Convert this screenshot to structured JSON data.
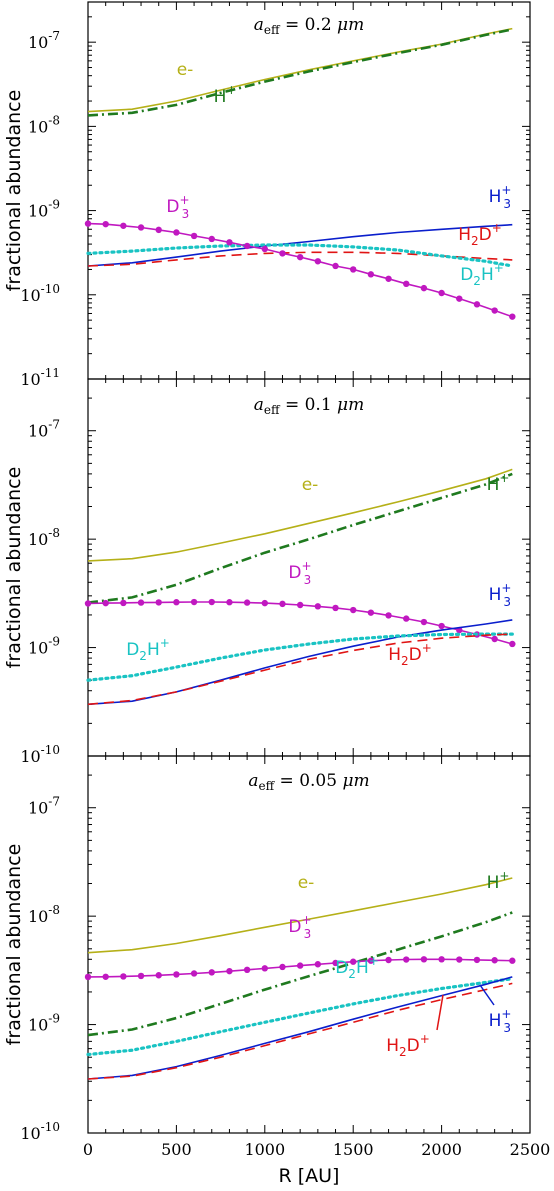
{
  "chart_data": [
    {
      "type": "line",
      "title_parts": {
        "var": "a",
        "sub": "eff",
        "eq": "= 0.2",
        "unit": "μm"
      },
      "ylabel": "fractional abundance",
      "xlabel": "",
      "xlim": [
        0,
        2500
      ],
      "ylim": [
        1e-11,
        3e-07
      ],
      "yscale": "log",
      "yticks": [
        {
          "exp": "-7"
        },
        {
          "exp": "-8"
        },
        {
          "exp": "-9"
        },
        {
          "exp": "-10"
        },
        {
          "exp": "-11"
        }
      ],
      "series": [
        {
          "name": "e-",
          "label": {
            "main": "e-"
          },
          "color": "#b5b018",
          "style": "solid",
          "x": [
            0,
            250,
            500,
            750,
            1000,
            1250,
            1500,
            1750,
            2000,
            2250,
            2400
          ],
          "y": [
            1.5e-08,
            1.6e-08,
            2e-08,
            2.7e-08,
            3.6e-08,
            4.7e-08,
            6e-08,
            7.6e-08,
            9.5e-08,
            1.25e-07,
            1.45e-07
          ]
        },
        {
          "name": "H+",
          "label": {
            "main": "H",
            "sup": "+"
          },
          "color": "#1f7a1f",
          "style": "dashdot",
          "x": [
            0,
            250,
            500,
            750,
            1000,
            1250,
            1500,
            1750,
            2000,
            2250,
            2400
          ],
          "y": [
            1.35e-08,
            1.45e-08,
            1.8e-08,
            2.5e-08,
            3.4e-08,
            4.5e-08,
            5.8e-08,
            7.4e-08,
            9.3e-08,
            1.22e-07,
            1.42e-07
          ]
        },
        {
          "name": "H3+",
          "label": {
            "main": "H",
            "sub": "3",
            "sup": "+"
          },
          "color": "#0a1ecc",
          "style": "solid",
          "x": [
            0,
            250,
            500,
            750,
            1000,
            1250,
            1500,
            1750,
            2000,
            2250,
            2400
          ],
          "y": [
            2.2e-10,
            2.4e-10,
            2.8e-10,
            3.3e-10,
            3.8e-10,
            4.3e-10,
            4.9e-10,
            5.5e-10,
            6e-10,
            6.5e-10,
            6.8e-10
          ]
        },
        {
          "name": "H2D+",
          "label": {
            "main": "H",
            "sub": "2",
            "main2": "D",
            "sup": "+"
          },
          "color": "#e01414",
          "style": "dashed",
          "x": [
            0,
            250,
            500,
            750,
            1000,
            1250,
            1500,
            1750,
            2000,
            2250,
            2400
          ],
          "y": [
            2.2e-10,
            2.3e-10,
            2.6e-10,
            2.9e-10,
            3.1e-10,
            3.2e-10,
            3.2e-10,
            3.1e-10,
            2.9e-10,
            2.7e-10,
            2.6e-10
          ]
        },
        {
          "name": "D2H+",
          "label": {
            "main": "D",
            "sub": "2",
            "main2": "H",
            "sup": "+"
          },
          "color": "#19c3c3",
          "style": "dotted",
          "x": [
            0,
            250,
            500,
            750,
            1000,
            1250,
            1500,
            1750,
            2000,
            2250,
            2400
          ],
          "y": [
            3.1e-10,
            3.3e-10,
            3.6e-10,
            3.8e-10,
            3.9e-10,
            3.9e-10,
            3.7e-10,
            3.4e-10,
            2.9e-10,
            2.5e-10,
            2.2e-10
          ]
        },
        {
          "name": "D3+",
          "label": {
            "main": "D",
            "sub": "3",
            "sup": "+"
          },
          "color": "#c018c0",
          "style": "markers",
          "x": [
            0,
            100,
            200,
            300,
            400,
            500,
            600,
            700,
            800,
            900,
            1000,
            1100,
            1200,
            1300,
            1400,
            1500,
            1600,
            1700,
            1800,
            1900,
            2000,
            2100,
            2200,
            2300,
            2400
          ],
          "y": [
            7e-10,
            6.9e-10,
            6.6e-10,
            6.3e-10,
            5.9e-10,
            5.5e-10,
            5e-10,
            4.6e-10,
            4.2e-10,
            3.8e-10,
            3.5e-10,
            3.1e-10,
            2.8e-10,
            2.5e-10,
            2.2e-10,
            2e-10,
            1.75e-10,
            1.55e-10,
            1.35e-10,
            1.2e-10,
            1.05e-10,
            9e-11,
            7.7e-11,
            6.5e-11,
            5.5e-11
          ]
        }
      ]
    },
    {
      "type": "line",
      "title_parts": {
        "var": "a",
        "sub": "eff",
        "eq": "= 0.1",
        "unit": "μm"
      },
      "ylabel": "fractional abundance",
      "xlabel": "",
      "xlim": [
        0,
        2500
      ],
      "ylim": [
        1e-10,
        3e-07
      ],
      "yscale": "log",
      "yticks": [
        {
          "exp": "-7"
        },
        {
          "exp": "-8"
        },
        {
          "exp": "-9"
        },
        {
          "exp": "-10"
        }
      ],
      "series": [
        {
          "name": "e-",
          "label": {
            "main": "e-"
          },
          "color": "#b5b018",
          "style": "solid",
          "x": [
            0,
            250,
            500,
            750,
            1000,
            1250,
            1500,
            1750,
            2000,
            2250,
            2400
          ],
          "y": [
            6.3e-09,
            6.6e-09,
            7.6e-09,
            9.2e-09,
            1.12e-08,
            1.4e-08,
            1.75e-08,
            2.2e-08,
            2.8e-08,
            3.6e-08,
            4.4e-08
          ]
        },
        {
          "name": "H+",
          "label": {
            "main": "H",
            "sup": "+"
          },
          "color": "#1f7a1f",
          "style": "dashdot",
          "x": [
            0,
            250,
            500,
            750,
            1000,
            1250,
            1500,
            1750,
            2000,
            2250,
            2400
          ],
          "y": [
            2.6e-09,
            2.9e-09,
            3.8e-09,
            5.4e-09,
            7.5e-09,
            1e-08,
            1.35e-08,
            1.8e-08,
            2.4e-08,
            3.2e-08,
            4e-08
          ]
        },
        {
          "name": "D3+",
          "label": {
            "main": "D",
            "sub": "3",
            "sup": "+"
          },
          "color": "#c018c0",
          "style": "markers",
          "x": [
            0,
            100,
            200,
            300,
            400,
            500,
            600,
            700,
            800,
            900,
            1000,
            1100,
            1200,
            1300,
            1400,
            1500,
            1600,
            1700,
            1800,
            1900,
            2000,
            2100,
            2200,
            2300,
            2400
          ],
          "y": [
            2.55e-09,
            2.57e-09,
            2.58e-09,
            2.6e-09,
            2.61e-09,
            2.62e-09,
            2.63e-09,
            2.63e-09,
            2.62e-09,
            2.6e-09,
            2.57e-09,
            2.53e-09,
            2.47e-09,
            2.4e-09,
            2.32e-09,
            2.22e-09,
            2.1e-09,
            1.98e-09,
            1.85e-09,
            1.72e-09,
            1.58e-09,
            1.45e-09,
            1.32e-09,
            1.2e-09,
            1.08e-09
          ]
        },
        {
          "name": "H3+",
          "label": {
            "main": "H",
            "sub": "3",
            "sup": "+"
          },
          "color": "#0a1ecc",
          "style": "solid",
          "x": [
            0,
            250,
            500,
            750,
            1000,
            1250,
            1500,
            1750,
            2000,
            2250,
            2400
          ],
          "y": [
            3e-10,
            3.2e-10,
            3.9e-10,
            5e-10,
            6.5e-10,
            8.3e-10,
            1.03e-09,
            1.25e-09,
            1.45e-09,
            1.65e-09,
            1.8e-09
          ]
        },
        {
          "name": "D2H+",
          "label": {
            "main": "D",
            "sub": "2",
            "main2": "H",
            "sup": "+"
          },
          "color": "#19c3c3",
          "style": "dotted",
          "x": [
            0,
            250,
            500,
            750,
            1000,
            1250,
            1500,
            1750,
            2000,
            2250,
            2400
          ],
          "y": [
            5e-10,
            5.5e-10,
            6.6e-10,
            8e-10,
            9.5e-10,
            1.08e-09,
            1.2e-09,
            1.28e-09,
            1.32e-09,
            1.33e-09,
            1.33e-09
          ]
        },
        {
          "name": "H2D+",
          "label": {
            "main": "H",
            "sub": "2",
            "main2": "D",
            "sup": "+"
          },
          "color": "#e01414",
          "style": "dashed",
          "x": [
            0,
            250,
            500,
            750,
            1000,
            1250,
            1500,
            1750,
            2000,
            2250,
            2400
          ],
          "y": [
            3e-10,
            3.25e-10,
            3.9e-10,
            4.9e-10,
            6.2e-10,
            7.8e-10,
            9.4e-10,
            1.1e-09,
            1.22e-09,
            1.3e-09,
            1.33e-09
          ]
        }
      ]
    },
    {
      "type": "line",
      "title_parts": {
        "var": "a",
        "sub": "eff",
        "eq": "= 0.05",
        "unit": "μm"
      },
      "ylabel": "fractional abundance",
      "xlabel": "R [AU]",
      "xlim": [
        0,
        2500
      ],
      "ylim": [
        1e-10,
        3e-07
      ],
      "yscale": "log",
      "yticks": [
        {
          "exp": "-7"
        },
        {
          "exp": "-8"
        },
        {
          "exp": "-9"
        },
        {
          "exp": "-10"
        }
      ],
      "xticks": [
        "0",
        "500",
        "1000",
        "1500",
        "2000",
        "2500"
      ],
      "series": [
        {
          "name": "e-",
          "label": {
            "main": "e-"
          },
          "color": "#b5b018",
          "style": "solid",
          "x": [
            0,
            250,
            500,
            750,
            1000,
            1250,
            1500,
            1750,
            2000,
            2250,
            2400
          ],
          "y": [
            4.6e-09,
            4.9e-09,
            5.6e-09,
            6.6e-09,
            7.9e-09,
            9.4e-09,
            1.12e-08,
            1.34e-08,
            1.6e-08,
            1.95e-08,
            2.25e-08
          ]
        },
        {
          "name": "H+",
          "label": {
            "main": "H",
            "sup": "+"
          },
          "color": "#1f7a1f",
          "style": "dashdot",
          "x": [
            0,
            250,
            500,
            750,
            1000,
            1250,
            1500,
            1750,
            2000,
            2250,
            2400
          ],
          "y": [
            8e-10,
            9e-10,
            1.15e-09,
            1.55e-09,
            2.1e-09,
            2.8e-09,
            3.7e-09,
            4.9e-09,
            6.5e-09,
            8.8e-09,
            1.08e-08
          ]
        },
        {
          "name": "D3+",
          "label": {
            "main": "D",
            "sub": "3",
            "sup": "+"
          },
          "color": "#c018c0",
          "style": "markers",
          "x": [
            0,
            100,
            200,
            300,
            400,
            500,
            600,
            700,
            800,
            900,
            1000,
            1100,
            1200,
            1300,
            1400,
            1500,
            1600,
            1700,
            1800,
            1900,
            2000,
            2100,
            2200,
            2300,
            2400
          ],
          "y": [
            2.75e-09,
            2.76e-09,
            2.78e-09,
            2.81e-09,
            2.85e-09,
            2.9e-09,
            2.96e-09,
            3.03e-09,
            3.11e-09,
            3.2e-09,
            3.3e-09,
            3.4e-09,
            3.5e-09,
            3.6e-09,
            3.7e-09,
            3.8e-09,
            3.88e-09,
            3.94e-09,
            3.98e-09,
            4e-09,
            4e-09,
            3.98e-09,
            3.95e-09,
            3.92e-09,
            3.88e-09
          ]
        },
        {
          "name": "D2H+",
          "label": {
            "main": "D",
            "sub": "2",
            "main2": "H",
            "sup": "+"
          },
          "color": "#19c3c3",
          "style": "dotted",
          "x": [
            0,
            250,
            500,
            750,
            1000,
            1250,
            1500,
            1750,
            2000,
            2250,
            2400
          ],
          "y": [
            5.3e-10,
            5.8e-10,
            7e-10,
            8.6e-10,
            1.05e-09,
            1.28e-09,
            1.55e-09,
            1.85e-09,
            2.15e-09,
            2.45e-09,
            2.65e-09
          ]
        },
        {
          "name": "H3+",
          "label": {
            "main": "H",
            "sub": "3",
            "sup": "+"
          },
          "color": "#0a1ecc",
          "style": "solid",
          "x": [
            0,
            250,
            500,
            750,
            1000,
            1250,
            1500,
            1750,
            2000,
            2250,
            2400
          ],
          "y": [
            3.15e-10,
            3.4e-10,
            4.1e-10,
            5.2e-10,
            6.7e-10,
            8.6e-10,
            1.12e-09,
            1.45e-09,
            1.85e-09,
            2.35e-09,
            2.75e-09
          ]
        },
        {
          "name": "H2D+",
          "label": {
            "main": "H",
            "sub": "2",
            "main2": "D",
            "sup": "+"
          },
          "color": "#e01414",
          "style": "dashed",
          "x": [
            0,
            250,
            500,
            750,
            1000,
            1250,
            1500,
            1750,
            2000,
            2250,
            2400
          ],
          "y": [
            3.15e-10,
            3.35e-10,
            4e-10,
            5e-10,
            6.4e-10,
            8.2e-10,
            1.05e-09,
            1.35e-09,
            1.7e-09,
            2.1e-09,
            2.4e-09
          ]
        }
      ]
    }
  ]
}
